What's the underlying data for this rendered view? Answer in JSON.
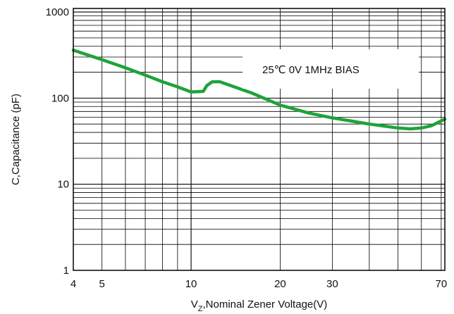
{
  "chart_data": {
    "type": "line",
    "title": "",
    "xlabel": "V",
    "xlabel_sub": "Z",
    "xlabel_rest": ",Nominal Zener Voltage(V)",
    "ylabel": "C,Capacitance (pF)",
    "x_scale": "log",
    "y_scale": "log",
    "xlim": [
      4,
      72
    ],
    "ylim": [
      1,
      1100
    ],
    "grid": true,
    "x_ticks": [
      {
        "value": 4,
        "label": "4"
      },
      {
        "value": 5,
        "label": "5"
      },
      {
        "value": 10,
        "label": "10"
      },
      {
        "value": 20,
        "label": "20"
      },
      {
        "value": 30,
        "label": "30"
      },
      {
        "value": 70,
        "label": "70"
      }
    ],
    "y_ticks": [
      {
        "value": 1,
        "label": "1"
      },
      {
        "value": 10,
        "label": "10"
      },
      {
        "value": 100,
        "label": "100"
      },
      {
        "value": 1000,
        "label": "1000"
      }
    ],
    "annotation": "25℃ 0V 1MHz BIAS",
    "line_color": "#1fa33a",
    "series": [
      {
        "x": [
          4,
          5,
          6,
          7,
          8,
          9,
          10,
          11,
          11.3,
          11.8,
          12.5,
          14,
          16,
          20,
          25,
          30,
          40,
          50,
          55,
          60,
          65,
          72
        ],
        "y": [
          360,
          280,
          225,
          185,
          155,
          135,
          118,
          120,
          140,
          155,
          155,
          135,
          115,
          83,
          67,
          59,
          50,
          45,
          44,
          45,
          48,
          57
        ]
      }
    ]
  }
}
